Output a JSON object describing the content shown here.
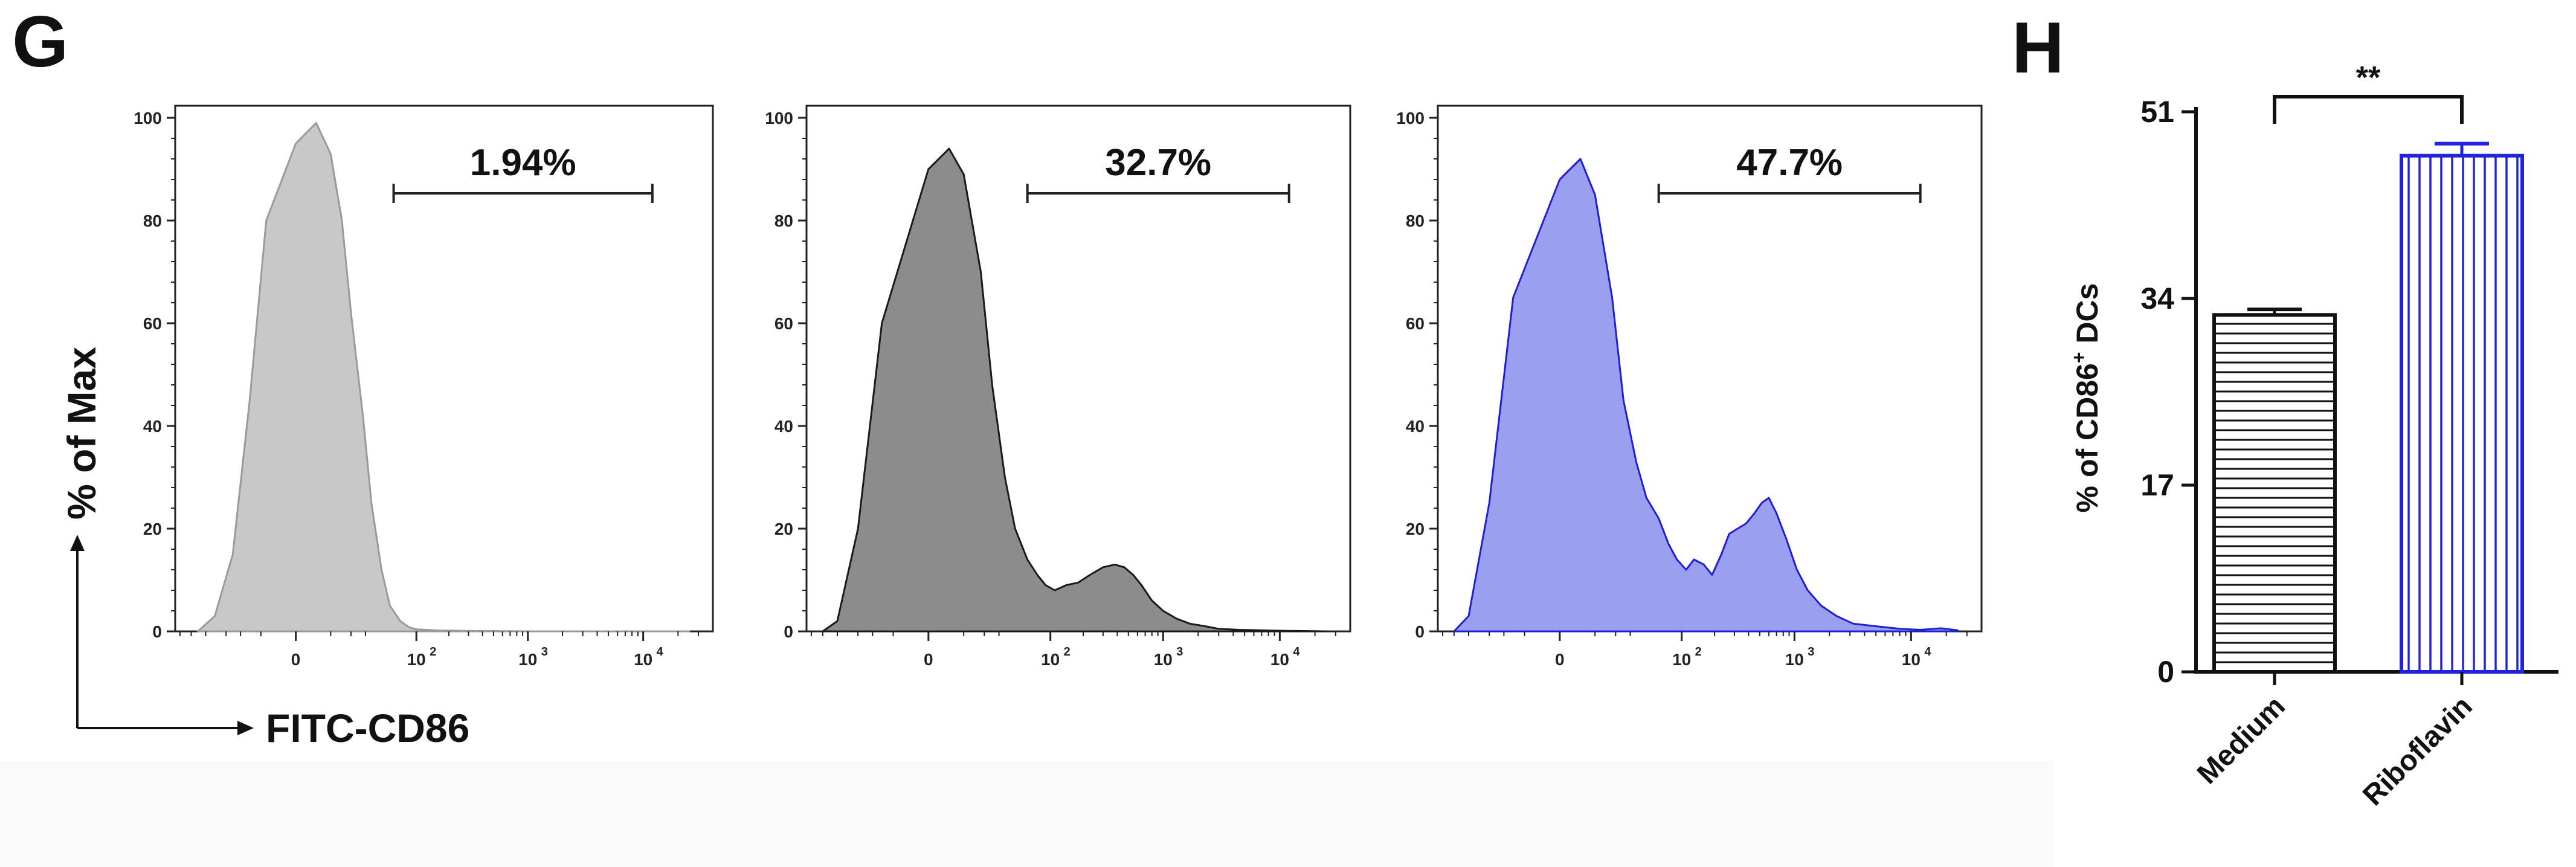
{
  "panels": {
    "histogram_letter": "G",
    "bar_letter": "H"
  },
  "axes_arrow_label": "FITC-CD86",
  "chart_data": [
    {
      "type": "area",
      "chart_id": "hist1",
      "ylabel": "% of Max",
      "xlabel": "FITC-CD86",
      "yticks": [
        "0",
        "20",
        "40",
        "60",
        "80",
        "100"
      ],
      "ylim": [
        0,
        100
      ],
      "xscale": "biexponential",
      "xticks": [
        {
          "base": "0",
          "exp": ""
        },
        {
          "base": "10",
          "exp": "2"
        },
        {
          "base": "10",
          "exp": "3"
        },
        {
          "base": "10",
          "exp": "4"
        }
      ],
      "gate": {
        "label": "1.94%",
        "from": 60,
        "to": 12000
      },
      "fill": "#c8c8c8",
      "stroke": "#9a9a9a",
      "x": [
        -60,
        -40,
        -25,
        -15,
        -8,
        0,
        5,
        10,
        15,
        20,
        28,
        35,
        45,
        55,
        70,
        85,
        100,
        150,
        300,
        1000,
        10000,
        25000
      ],
      "y": [
        0,
        3,
        15,
        45,
        80,
        95,
        99,
        93,
        80,
        62,
        42,
        25,
        12,
        5,
        2,
        0.8,
        0.4,
        0.2,
        0.1,
        0,
        0,
        0
      ]
    },
    {
      "type": "area",
      "chart_id": "hist2",
      "yticks": [
        "0",
        "20",
        "40",
        "60",
        "80",
        "100"
      ],
      "ylim": [
        0,
        100
      ],
      "xscale": "biexponential",
      "xticks": [
        {
          "base": "0",
          "exp": ""
        },
        {
          "base": "10",
          "exp": "2"
        },
        {
          "base": "10",
          "exp": "3"
        },
        {
          "base": "10",
          "exp": "4"
        }
      ],
      "gate": {
        "label": "32.7%",
        "from": 60,
        "to": 12000
      },
      "fill": "#8c8c8c",
      "stroke": "#1a1a1a",
      "x": [
        -70,
        -50,
        -30,
        -15,
        0,
        5,
        10,
        18,
        25,
        35,
        45,
        60,
        75,
        90,
        110,
        140,
        180,
        230,
        300,
        380,
        460,
        550,
        650,
        800,
        1000,
        1300,
        1700,
        2300,
        3000,
        4500,
        7000,
        12000,
        25000
      ],
      "y": [
        0,
        2,
        20,
        60,
        90,
        94,
        89,
        70,
        48,
        30,
        20,
        14,
        11,
        9,
        8,
        9,
        9.5,
        11,
        12.5,
        13,
        12.5,
        11,
        9,
        6,
        4,
        2.5,
        1.5,
        1,
        0.5,
        0.3,
        0.2,
        0.1,
        0
      ]
    },
    {
      "type": "area",
      "chart_id": "hist3",
      "yticks": [
        "0",
        "20",
        "40",
        "60",
        "80",
        "100"
      ],
      "ylim": [
        0,
        100
      ],
      "xscale": "biexponential",
      "xticks": [
        {
          "base": "0",
          "exp": ""
        },
        {
          "base": "10",
          "exp": "2"
        },
        {
          "base": "10",
          "exp": "3"
        },
        {
          "base": "10",
          "exp": "4"
        }
      ],
      "gate": {
        "label": "47.7%",
        "from": 60,
        "to": 12000
      },
      "fill": "#9b9ff0",
      "stroke": "#1f1fd0",
      "x": [
        -70,
        -50,
        -30,
        -15,
        0,
        5,
        10,
        18,
        25,
        35,
        45,
        60,
        75,
        90,
        110,
        130,
        160,
        190,
        230,
        270,
        320,
        380,
        450,
        520,
        600,
        700,
        850,
        1050,
        1300,
        1700,
        2300,
        3200,
        5000,
        8000,
        12000,
        18000,
        25000
      ],
      "y": [
        0,
        3,
        25,
        65,
        88,
        92,
        85,
        65,
        45,
        33,
        26,
        22,
        17,
        14,
        12,
        14,
        13,
        11,
        15,
        19,
        20,
        21,
        23,
        25,
        26,
        23,
        18,
        12,
        8,
        5,
        3,
        1.5,
        1,
        0.5,
        0.3,
        0.6,
        0.2
      ]
    },
    {
      "type": "bar",
      "chart_id": "bars",
      "categories": [
        "Medium",
        "Riboflavin"
      ],
      "values": [
        32.5,
        47
      ],
      "errors": [
        0.5,
        1.1
      ],
      "ylabel_prefix": "% of CD86",
      "ylabel_sup": "+",
      "ylabel_suffix": " DCs",
      "yticks": [
        "0",
        "17",
        "34",
        "51"
      ],
      "ylim": [
        0,
        51
      ],
      "patterns": [
        "horizontal",
        "vertical"
      ],
      "colors": [
        "#111111",
        "#2222dd"
      ],
      "significance": "**"
    }
  ]
}
